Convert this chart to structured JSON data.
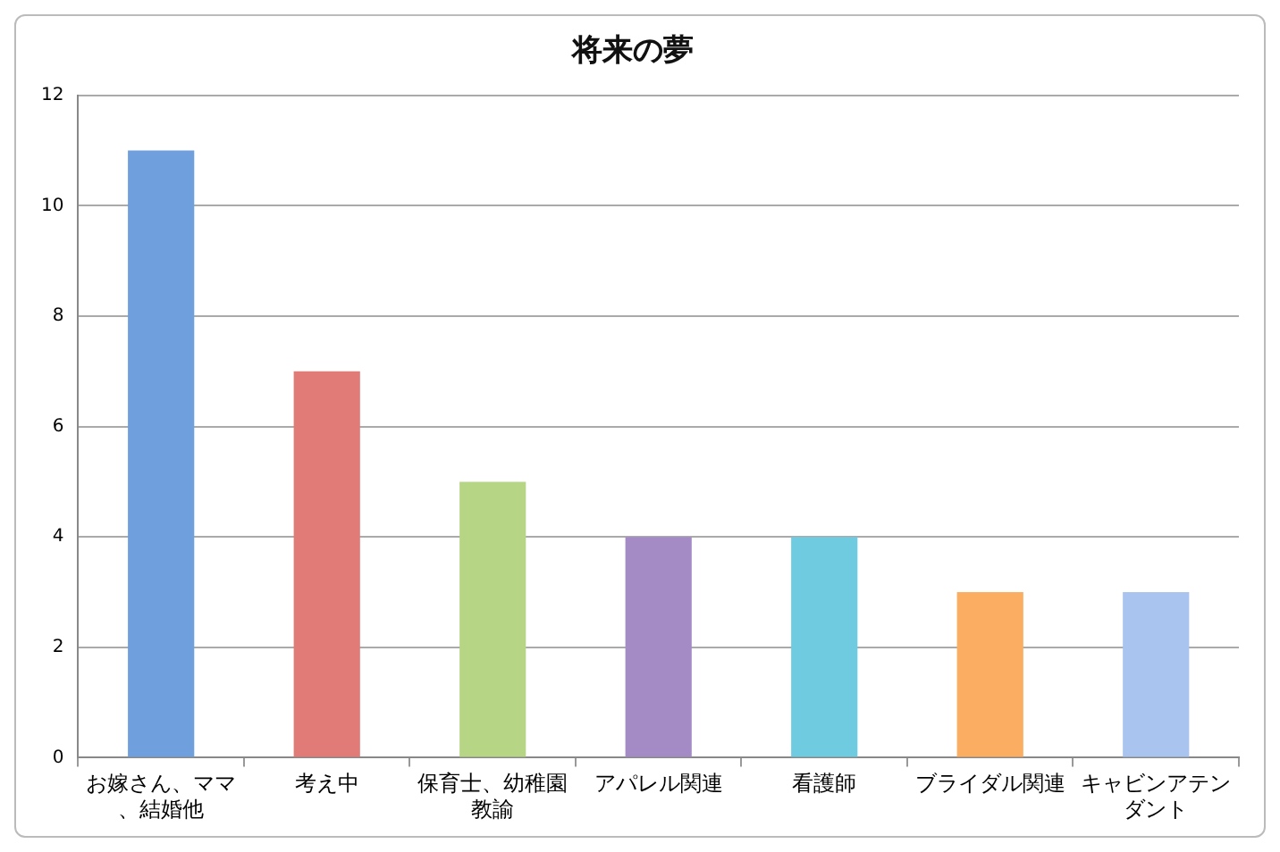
{
  "chart_data": {
    "type": "bar",
    "title": "将来の夢",
    "categories": [
      "お嫁さん、ママ、結婚他",
      "考え中",
      "保育士、幼稚園教諭",
      "アパレル関連",
      "看護師",
      "ブライダル関連",
      "キャビンアテンダント"
    ],
    "values": [
      11,
      7,
      5,
      4,
      4,
      3,
      3
    ],
    "colors": [
      "#6f9fdc",
      "#e07b78",
      "#b7d685",
      "#a48bc6",
      "#6fcbe0",
      "#fbae62",
      "#a9c4ee"
    ],
    "ylim": [
      0,
      12
    ],
    "yticks": [
      0,
      2,
      4,
      6,
      8,
      10,
      12
    ],
    "grid": "y",
    "legend": false
  }
}
